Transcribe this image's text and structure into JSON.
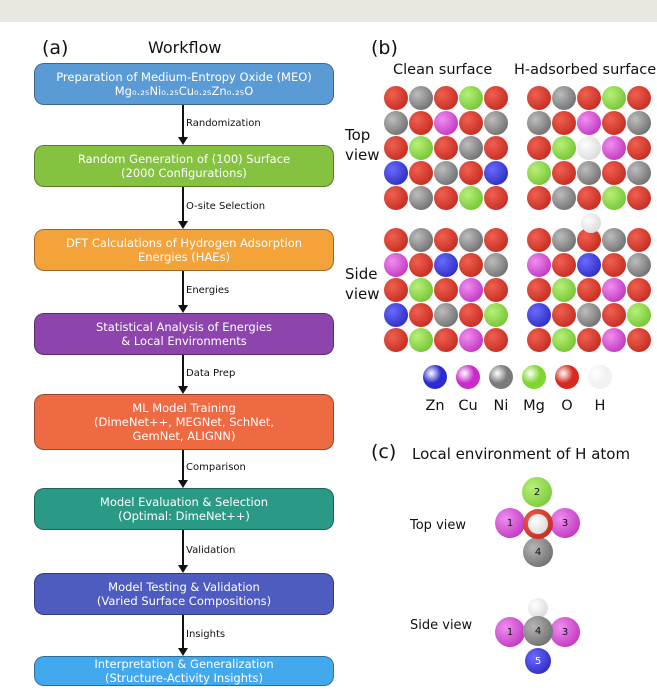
{
  "panel_a": {
    "label": "(a)",
    "title": "Workflow",
    "boxes": [
      {
        "line1": "Preparation of Medium-Entropy Oxide (MEO)",
        "line2": "Mg₀.₂₅Ni₀.₂₅Cu₀.₂₅Zn₀.₂₅O",
        "color": "#5b9bd5"
      },
      {
        "line1": "Random Generation of (100) Surface",
        "line2": "(2000 Configurations)",
        "color": "#84c240"
      },
      {
        "line1": "DFT Calculations of Hydrogen Adsorption",
        "line2": "Energies (HAEs)",
        "color": "#f4a23a"
      },
      {
        "line1": "Statistical Analysis of Energies",
        "line2": "& Local Environments",
        "color": "#8e44ad"
      },
      {
        "line1": "ML Model Training",
        "line2": "(DimeNet++, MEGNet, SchNet,",
        "line3": "GemNet, ALIGNN)",
        "color": "#ee6a43"
      },
      {
        "line1": "Model Evaluation & Selection",
        "line2": "(Optimal: DimeNet++)",
        "color": "#2a9a86"
      },
      {
        "line1": "Model Testing & Validation",
        "line2": "(Varied Surface Compositions)",
        "color": "#4e5bbf"
      },
      {
        "line1": "Interpretation & Generalization",
        "line2": "(Structure-Activity Insights)",
        "color": "#43a9ee"
      }
    ],
    "arrows": [
      "Randomization",
      "O-site Selection",
      "Energies",
      "Data Prep",
      "Comparison",
      "Validation",
      "Insights"
    ]
  },
  "panel_b": {
    "label": "(b)",
    "col_clean": "Clean surface",
    "col_h": "H-adsorbed surface",
    "row_top_1": "Top",
    "row_top_2": "view",
    "row_side_1": "Side",
    "row_side_2": "view",
    "legend": [
      {
        "label": "Zn",
        "color": "#2a2ad0"
      },
      {
        "label": "Cu",
        "color": "#c92bc9"
      },
      {
        "label": "Ni",
        "color": "#7a7a7a"
      },
      {
        "label": "Mg",
        "color": "#7fd630"
      },
      {
        "label": "O",
        "color": "#d62a1f"
      },
      {
        "label": "H",
        "color": "#f2f2f2"
      }
    ]
  },
  "panel_c": {
    "label": "(c)",
    "title": "Local environment of H atom",
    "top_view": "Top view",
    "side_view": "Side view",
    "atom_labels": [
      "1",
      "2",
      "3",
      "4",
      "5"
    ]
  }
}
